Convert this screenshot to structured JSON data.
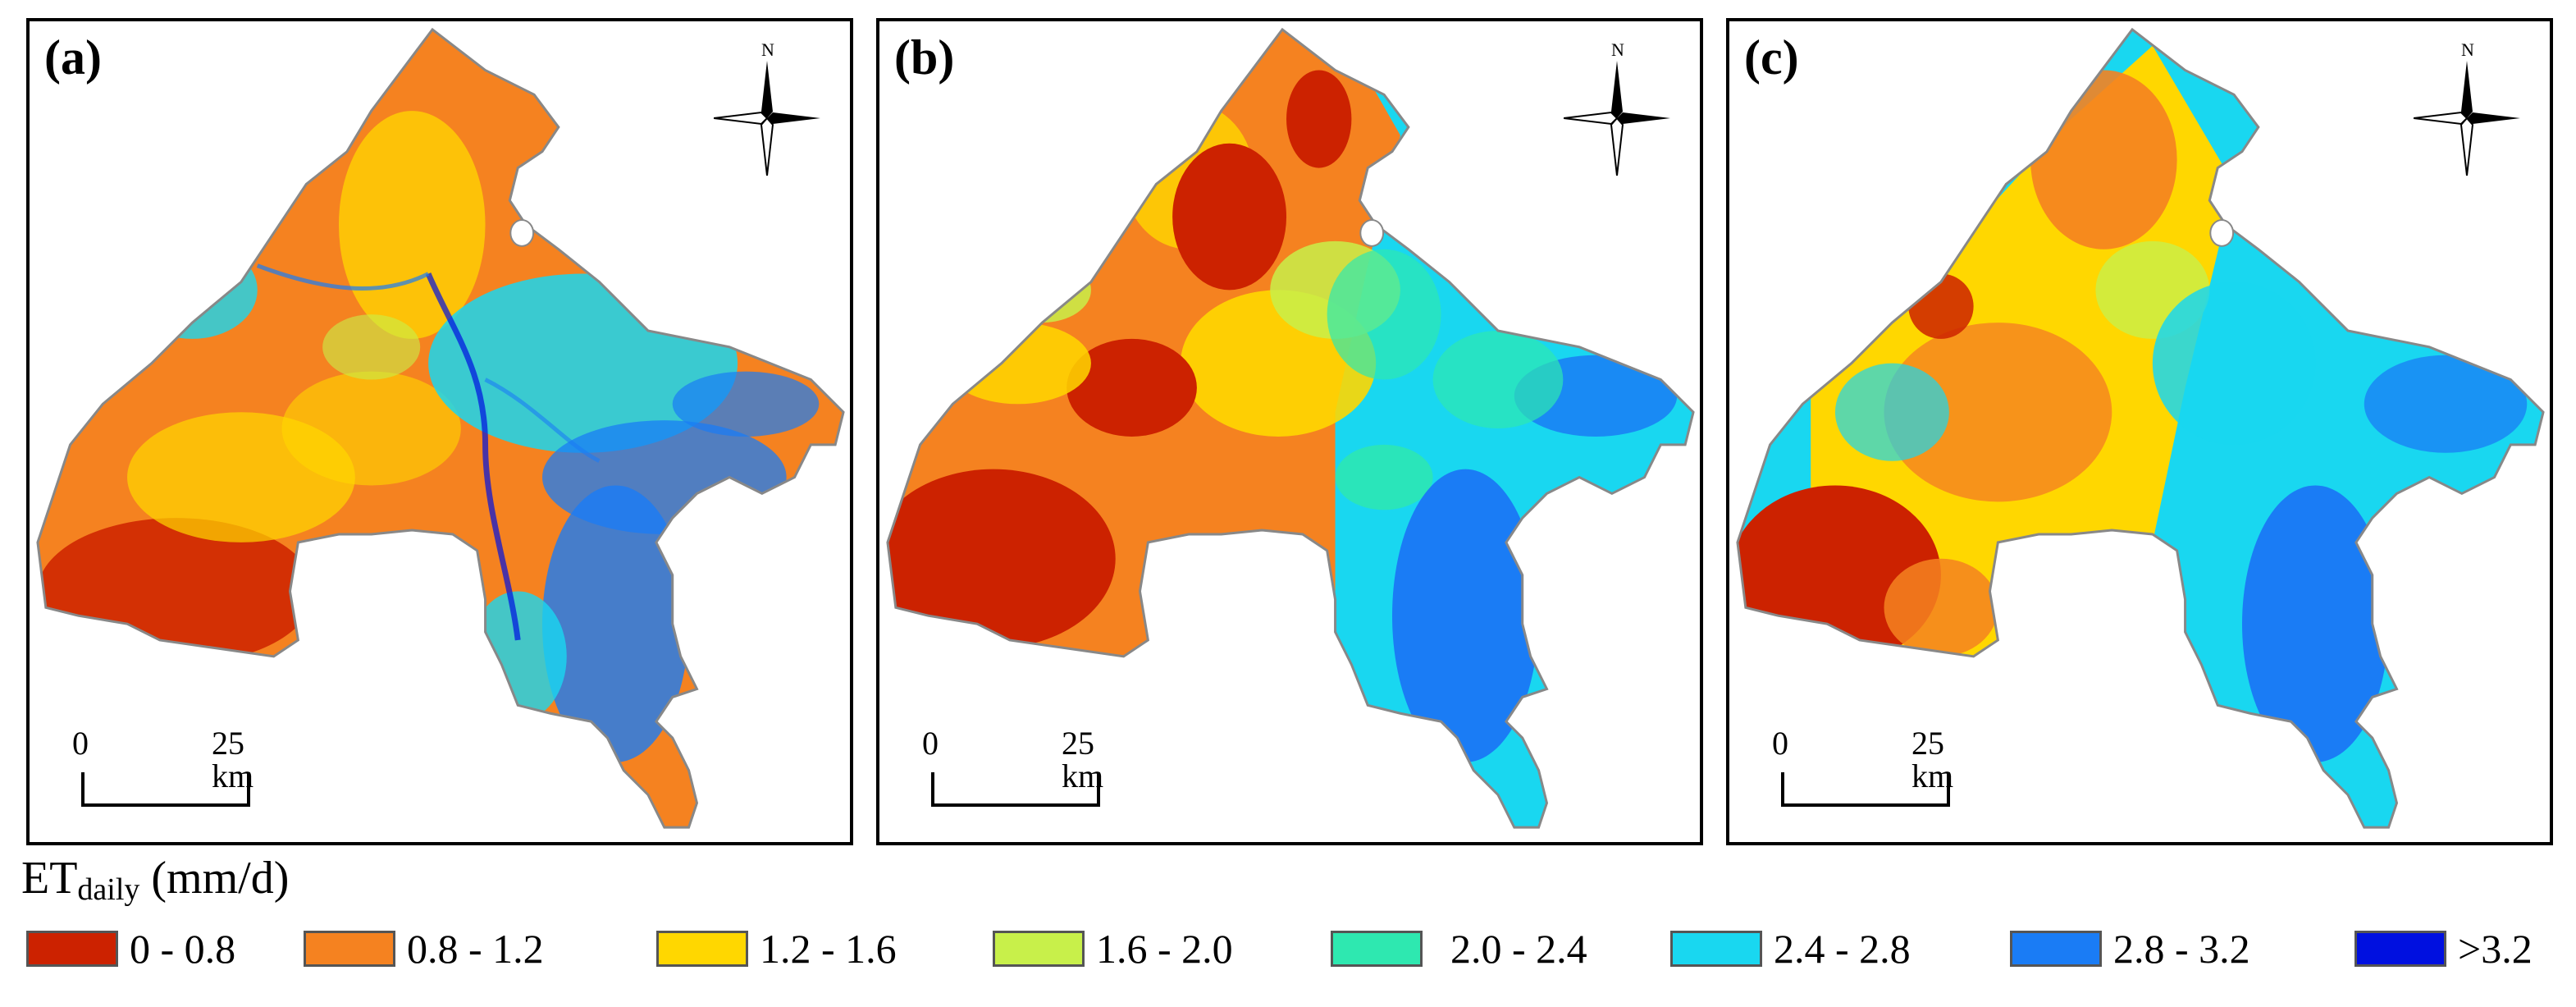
{
  "panels": [
    {
      "label": "(a)",
      "north": "N",
      "scale_start": "0",
      "scale_end": "25 km"
    },
    {
      "label": "(b)",
      "north": "N",
      "scale_start": "0",
      "scale_end": "25 km"
    },
    {
      "label": "(c)",
      "north": "N",
      "scale_start": "0",
      "scale_end": "25 km"
    }
  ],
  "legend": {
    "title_main": "ET",
    "title_sub": "daily",
    "title_unit": " (mm/d)",
    "classes": [
      {
        "label": "0 - 0.8",
        "color": "#cc2200"
      },
      {
        "label": "0.8 - 1.2",
        "color": "#f58220"
      },
      {
        "label": "1.2 - 1.6",
        "color": "#ffd700"
      },
      {
        "label": "1.6 - 2.0",
        "color": "#c8f04a"
      },
      {
        "label": "2.0 - 2.4",
        "color": "#2ee8b0"
      },
      {
        "label": "2.4 - 2.8",
        "color": "#19d7f0"
      },
      {
        "label": "2.8 - 3.2",
        "color": "#1a7cf5"
      },
      {
        "label": ">3.2",
        "color": "#0010e0"
      }
    ]
  }
}
